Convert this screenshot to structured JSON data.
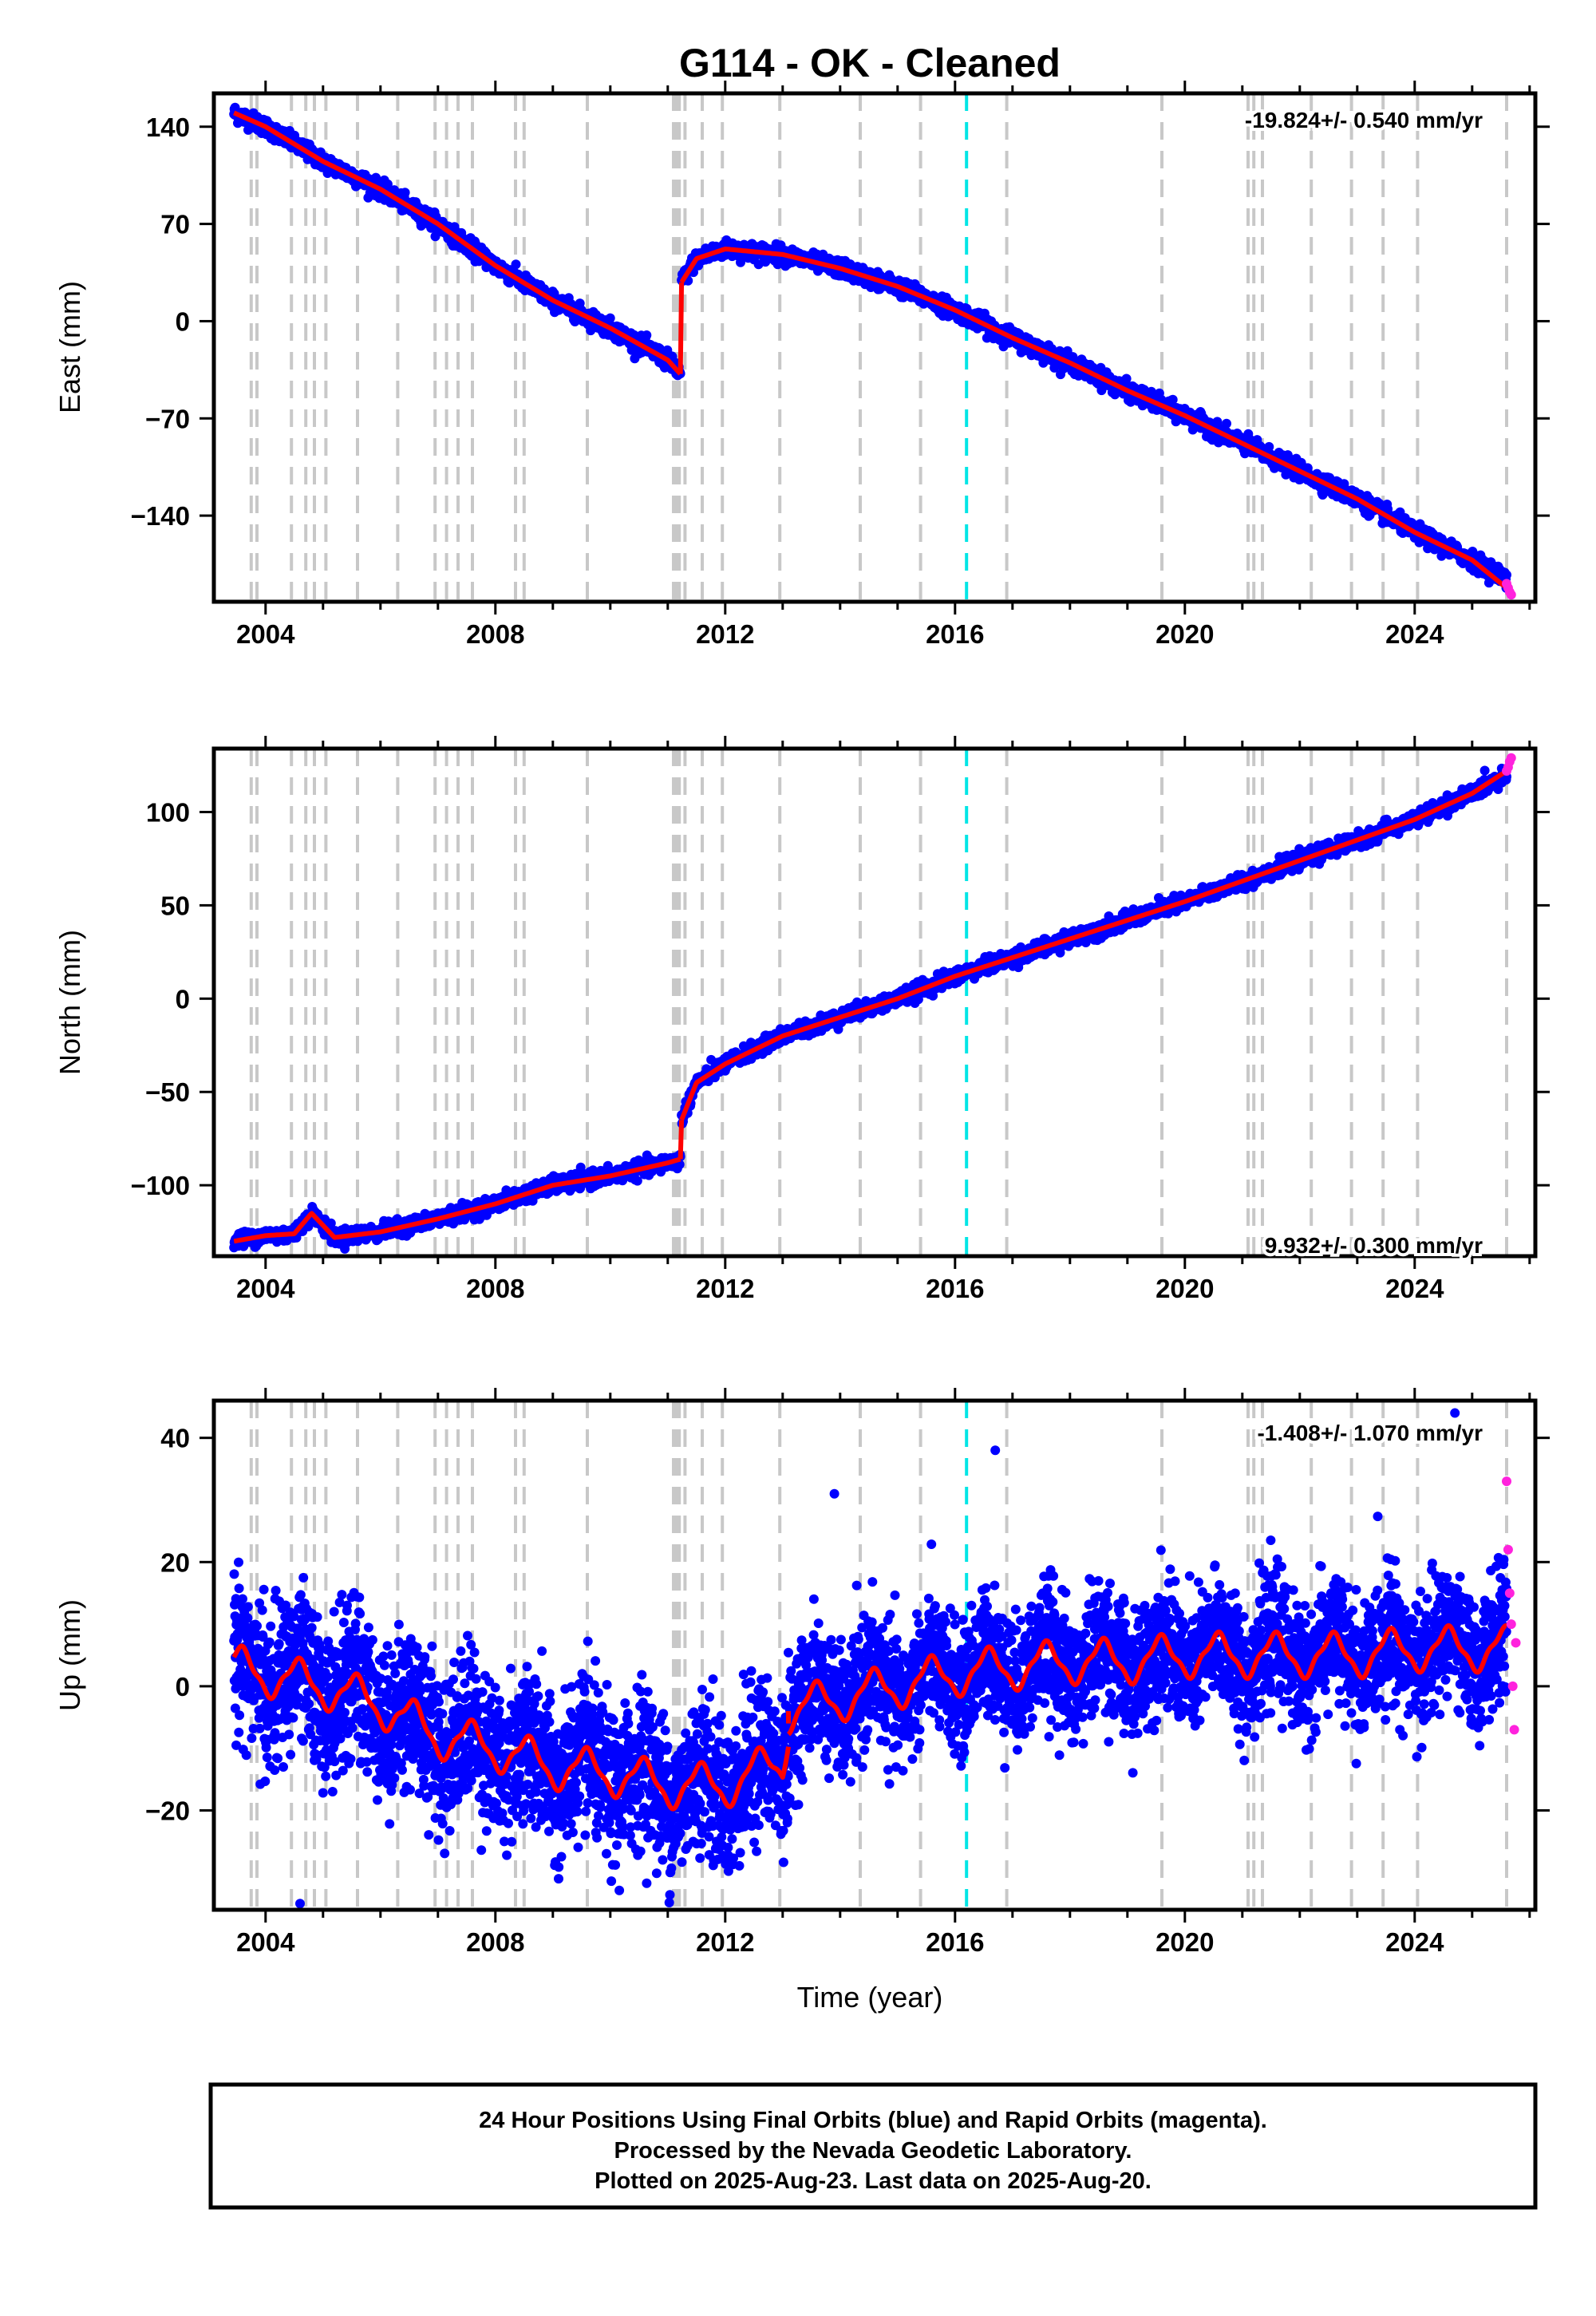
{
  "title": "G114  - OK - Cleaned",
  "xlabel": "Time (year)",
  "footer": {
    "line1": "24 Hour Positions Using Final Orbits (blue) and Rapid Orbits (magenta).",
    "line2": "Processed by the Nevada Geodetic Laboratory.",
    "line3": "Plotted on 2025-Aug-23. Last data on 2025-Aug-20."
  },
  "colors": {
    "final_points": "#0000ff",
    "rapid_points": "#ff22dd",
    "model_line": "#ff0000",
    "equipment_change_lines": "#c8c8c8",
    "highlight_line": "#00e5e5",
    "frame": "#000000"
  },
  "chart_data": [
    {
      "type": "scatter",
      "panel": "East",
      "ylabel": "East (mm)",
      "rate_label": "-19.824+/- 0.540 mm/yr",
      "xlim": [
        2003.1,
        2026.1
      ],
      "ylim": [
        -202,
        164
      ],
      "xticks": [
        2004,
        2008,
        2012,
        2016,
        2020,
        2024
      ],
      "yticks": [
        140,
        70,
        0,
        -70,
        -140
      ],
      "ytick_labels": [
        "140",
        "70",
        "0",
        "−70",
        "−140"
      ],
      "series": [
        {
          "role": "final_orbits",
          "segments": [
            {
              "x": [
                2003.45,
                2004.0,
                2005.0,
                2006.0,
                2007.0,
                2008.0,
                2009.0,
                2010.0,
                2011.0,
                2011.22
              ],
              "y": [
                150,
                140,
                115,
                95,
                70,
                40,
                15,
                -5,
                -28,
                -38
              ],
              "noise": 3
            },
            {
              "x": [
                2011.24,
                2011.5,
                2012.0,
                2013.0,
                2014.0,
                2015.0,
                2016.0,
                2017.0,
                2018.0,
                2019.0,
                2020.0,
                2021.0,
                2022.0,
                2023.0,
                2024.0,
                2025.0,
                2025.6
              ],
              "y": [
                28,
                45,
                52,
                48,
                38,
                25,
                8,
                -12,
                -30,
                -50,
                -68,
                -88,
                -108,
                -128,
                -152,
                -172,
                -185
              ],
              "noise": 3
            }
          ]
        },
        {
          "role": "rapid_orbits",
          "x": [
            2025.6,
            2025.61,
            2025.62,
            2025.63
          ],
          "y": [
            -189,
            -192,
            -195,
            -197
          ]
        },
        {
          "role": "model",
          "segments": [
            {
              "x": [
                2003.45,
                2004.0,
                2005.0,
                2006.0,
                2007.0,
                2008.0,
                2009.0,
                2010.0,
                2011.0,
                2011.22
              ],
              "y": [
                150,
                140,
                115,
                95,
                70,
                40,
                15,
                -5,
                -28,
                -38
              ]
            },
            {
              "x": [
                2011.24,
                2011.5,
                2012.0,
                2013.0,
                2014.0,
                2015.0,
                2016.0,
                2017.0,
                2018.0,
                2019.0,
                2020.0,
                2021.0,
                2022.0,
                2023.0,
                2024.0,
                2025.0,
                2025.6
              ],
              "y": [
                28,
                45,
                52,
                48,
                38,
                25,
                8,
                -12,
                -30,
                -50,
                -68,
                -88,
                -108,
                -128,
                -152,
                -172,
                -192
              ]
            }
          ]
        }
      ]
    },
    {
      "type": "scatter",
      "panel": "North",
      "ylabel": "North (mm)",
      "rate_label": "9.932+/- 0.300 mm/yr",
      "xlim": [
        2003.1,
        2026.1
      ],
      "ylim": [
        -138,
        134
      ],
      "xticks": [
        2004,
        2008,
        2012,
        2016,
        2020,
        2024
      ],
      "yticks": [
        100,
        50,
        0,
        -50,
        -100
      ],
      "ytick_labels": [
        "100",
        "50",
        "0",
        "−50",
        "−100"
      ],
      "series": [
        {
          "role": "final_orbits",
          "segments": [
            {
              "x": [
                2003.45,
                2004.0,
                2004.5,
                2004.8,
                2005.2,
                2006.0,
                2007.0,
                2008.0,
                2009.0,
                2010.0,
                2011.0,
                2011.22
              ],
              "y": [
                -130,
                -127,
                -126,
                -115,
                -128,
                -125,
                -118,
                -110,
                -100,
                -95,
                -88,
                -86
              ],
              "noise": 2
            },
            {
              "x": [
                2011.24,
                2011.5,
                2012.0,
                2013.0,
                2014.0,
                2015.0,
                2016.0,
                2017.0,
                2018.0,
                2019.0,
                2020.0,
                2021.0,
                2022.0,
                2023.0,
                2024.0,
                2025.0,
                2025.6
              ],
              "y": [
                -65,
                -45,
                -35,
                -20,
                -10,
                0,
                12,
                22,
                32,
                42,
                52,
                63,
                74,
                85,
                96,
                110,
                120
              ],
              "noise": 2
            }
          ]
        },
        {
          "role": "rapid_orbits",
          "x": [
            2025.6,
            2025.61,
            2025.62,
            2025.63
          ],
          "y": [
            122,
            124,
            127,
            129
          ]
        },
        {
          "role": "model",
          "segments": [
            {
              "x": [
                2003.45,
                2004.0,
                2004.5,
                2004.8,
                2005.2,
                2006.0,
                2007.0,
                2008.0,
                2009.0,
                2010.0,
                2011.0,
                2011.22
              ],
              "y": [
                -130,
                -127,
                -126,
                -115,
                -128,
                -125,
                -118,
                -110,
                -100,
                -95,
                -88,
                -86
              ]
            },
            {
              "x": [
                2011.24,
                2011.5,
                2012.0,
                2013.0,
                2014.0,
                2015.0,
                2016.0,
                2017.0,
                2018.0,
                2019.0,
                2020.0,
                2021.0,
                2022.0,
                2023.0,
                2024.0,
                2025.0,
                2025.6
              ],
              "y": [
                -65,
                -45,
                -35,
                -20,
                -10,
                0,
                12,
                22,
                32,
                42,
                52,
                63,
                74,
                85,
                96,
                110,
                122
              ]
            }
          ]
        }
      ]
    },
    {
      "type": "scatter",
      "panel": "Up",
      "ylabel": "Up (mm)",
      "rate_label": "-1.408+/- 1.070 mm/yr",
      "xlim": [
        2003.1,
        2026.1
      ],
      "ylim": [
        -36,
        46
      ],
      "xticks": [
        2004,
        2008,
        2012,
        2016,
        2020,
        2024
      ],
      "yticks": [
        40,
        20,
        0,
        -20
      ],
      "ytick_labels": [
        "40",
        "20",
        "0",
        "−20"
      ],
      "series": [
        {
          "role": "final_orbits",
          "segments": [
            {
              "x": [
                2003.45,
                2005.0,
                2006.0,
                2007.0,
                2008.0,
                2009.0,
                2010.0,
                2011.0,
                2012.0,
                2013.0,
                2013.1
              ],
              "y": [
                3,
                0,
                -3,
                -8,
                -10,
                -13,
                -14,
                -16,
                -16,
                -12,
                -6
              ],
              "noise": 6,
              "amp": 4
            },
            {
              "x": [
                2013.1,
                2014.0,
                2015.0,
                2016.0,
                2017.0,
                2018.0,
                2019.0,
                2020.0,
                2021.0,
                2022.0,
                2023.0,
                2024.0,
                2025.0,
                2025.6
              ],
              "y": [
                -4,
                -2,
                0,
                2,
                3,
                4,
                4,
                5,
                5,
                5,
                5,
                6,
                6,
                6
              ],
              "noise": 5,
              "amp": 4
            }
          ]
        },
        {
          "role": "rapid_orbits",
          "x": [
            2025.6,
            2025.61,
            2025.62,
            2025.63,
            2025.64,
            2025.65,
            2025.66
          ],
          "y": [
            33,
            22,
            15,
            10,
            0,
            -7,
            7
          ]
        },
        {
          "role": "model",
          "segments": [
            {
              "x": [
                2003.45,
                2005.0,
                2006.0,
                2007.0,
                2008.0,
                2009.0,
                2010.0,
                2011.0,
                2012.0,
                2013.0,
                2013.1
              ],
              "y": [
                3,
                0,
                -3,
                -8,
                -10,
                -13,
                -14,
                -16,
                -16,
                -12,
                -6
              ],
              "amp": 4
            },
            {
              "x": [
                2013.1,
                2014.0,
                2015.0,
                2016.0,
                2017.0,
                2018.0,
                2019.0,
                2020.0,
                2021.0,
                2022.0,
                2023.0,
                2024.0,
                2025.0,
                2025.6
              ],
              "y": [
                -4,
                -2,
                0,
                2,
                3,
                4,
                4,
                5,
                5,
                5,
                5,
                6,
                6,
                6
              ],
              "amp": 4
            }
          ]
        }
      ],
      "outliers": {
        "x": [
          2004.6,
          2016.7,
          2024.7,
          2013.9,
          2009.1,
          2011.8
        ],
        "y": [
          -35,
          38,
          44,
          31,
          -31,
          -28
        ]
      }
    }
  ],
  "equipment_changes": [
    2003.75,
    2003.85,
    2004.45,
    2004.7,
    2004.85,
    2005.05,
    2005.6,
    2006.3,
    2006.95,
    2007.15,
    2007.35,
    2007.6,
    2008.35,
    2008.5,
    2009.6,
    2011.1,
    2011.15,
    2011.2,
    2011.3,
    2011.6,
    2011.95,
    2012.95,
    2014.35,
    2015.4,
    2016.9,
    2019.6,
    2021.1,
    2021.2,
    2021.35,
    2022.2,
    2022.9,
    2023.45,
    2024.05,
    2025.6
  ],
  "highlight_epoch": 2016.2
}
